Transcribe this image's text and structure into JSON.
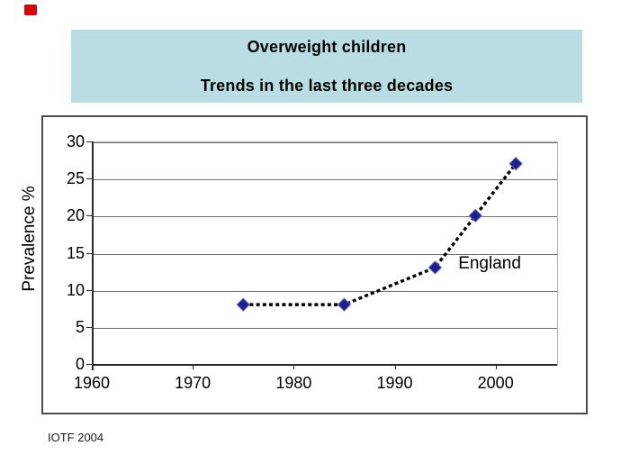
{
  "slide": {
    "background": "#ffffff",
    "red_mark_color": "#d40808"
  },
  "title_box": {
    "line1": "Overweight children",
    "line2": "Trends in the last three decades",
    "background": "#b9dde2",
    "text_color": "#000000"
  },
  "footnote": {
    "text": "IOTF 2004"
  },
  "chart_data": {
    "type": "line",
    "title": "Overweight children — Trends in the last three decades",
    "ylabel": "Prevalence %",
    "xlabel": "",
    "xlim": [
      1960,
      2006
    ],
    "ylim": [
      0,
      30
    ],
    "xticks": [
      1960,
      1970,
      1980,
      1990,
      2000
    ],
    "yticks": [
      0,
      5,
      10,
      15,
      20,
      25,
      30
    ],
    "grid": "horizontal",
    "legend_position": "none",
    "series": [
      {
        "name": "England",
        "x": [
          1975,
          1985,
          1994,
          1998,
          2002
        ],
        "values": [
          8,
          8,
          13,
          20,
          27
        ],
        "line_style": "dotted",
        "line_color": "#000000",
        "marker": "diamond",
        "marker_color": "#1f1f8f",
        "marker_edge_color": "#6a6ab8"
      }
    ],
    "annotations": [
      {
        "text": "England",
        "x": 1996.3,
        "y": 13.5
      }
    ]
  }
}
